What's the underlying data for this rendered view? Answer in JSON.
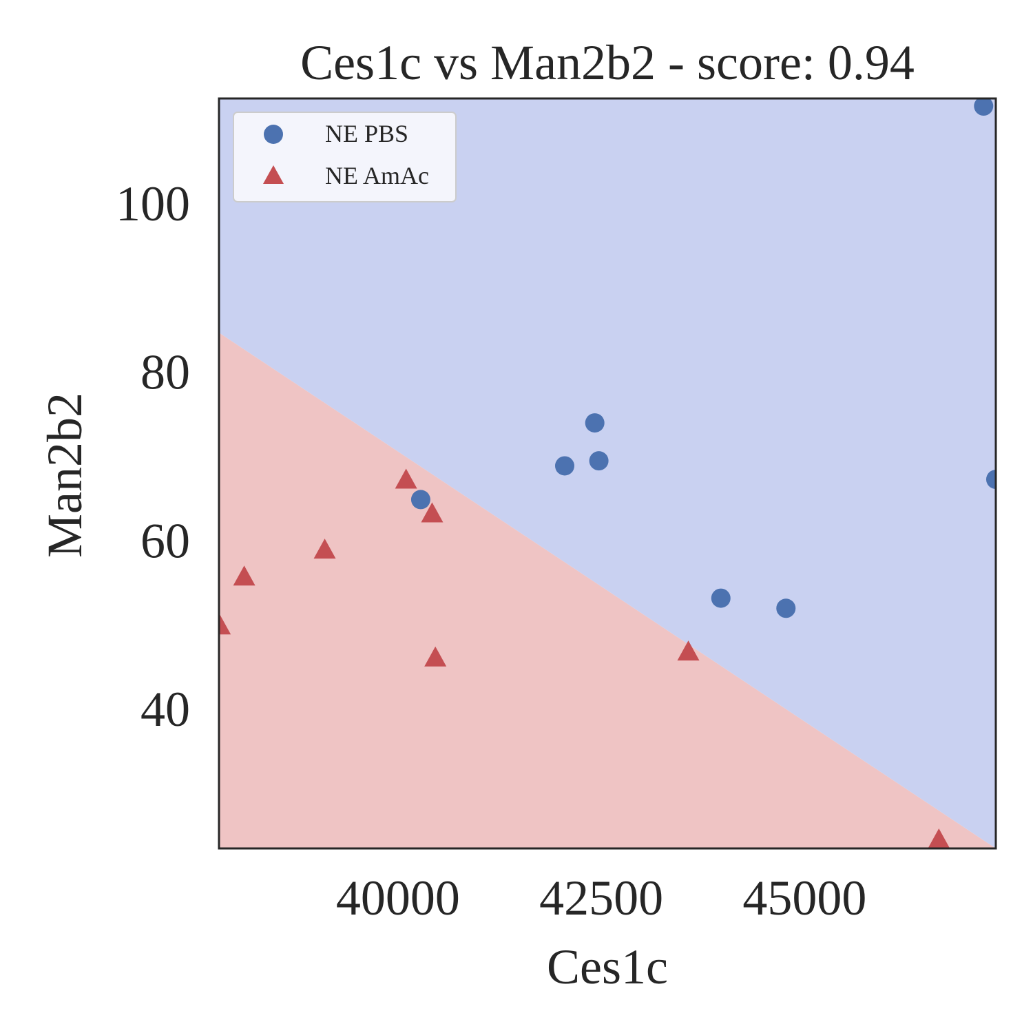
{
  "chart_data": {
    "type": "scatter",
    "title": "Ces1c vs Man2b2 - score: 0.94",
    "xlabel": "Ces1c",
    "ylabel": "Man2b2",
    "xlim": [
      37800,
      47350
    ],
    "ylim": [
      23.5,
      112.5
    ],
    "xticks": [
      40000,
      42500,
      45000
    ],
    "yticks": [
      40,
      60,
      80,
      100
    ],
    "grid": false,
    "legend_position": "top-left",
    "decision_boundary": {
      "line": [
        [
          37800,
          84.7
        ],
        [
          47350,
          23.5
        ]
      ],
      "upper_class": "NE PBS",
      "lower_class": "NE AmAc",
      "upper_color": "#c9d1f1",
      "lower_color": "#efc4c4"
    },
    "series": [
      {
        "name": "NE PBS",
        "marker": "circle",
        "color": "#4c72b0",
        "points": [
          [
            47200,
            111.6
          ],
          [
            42420,
            74.0
          ],
          [
            42470,
            69.5
          ],
          [
            42050,
            68.9
          ],
          [
            47350,
            67.3
          ],
          [
            40280,
            64.9
          ],
          [
            43970,
            53.2
          ],
          [
            44770,
            52.0
          ]
        ]
      },
      {
        "name": "NE AmAc",
        "marker": "triangle",
        "color": "#c44e52",
        "points": [
          [
            40100,
            67.1
          ],
          [
            40420,
            63.1
          ],
          [
            39100,
            58.8
          ],
          [
            38110,
            55.6
          ],
          [
            37810,
            49.8
          ],
          [
            40460,
            46.0
          ],
          [
            43570,
            46.7
          ],
          [
            46650,
            24.4
          ]
        ]
      }
    ]
  }
}
